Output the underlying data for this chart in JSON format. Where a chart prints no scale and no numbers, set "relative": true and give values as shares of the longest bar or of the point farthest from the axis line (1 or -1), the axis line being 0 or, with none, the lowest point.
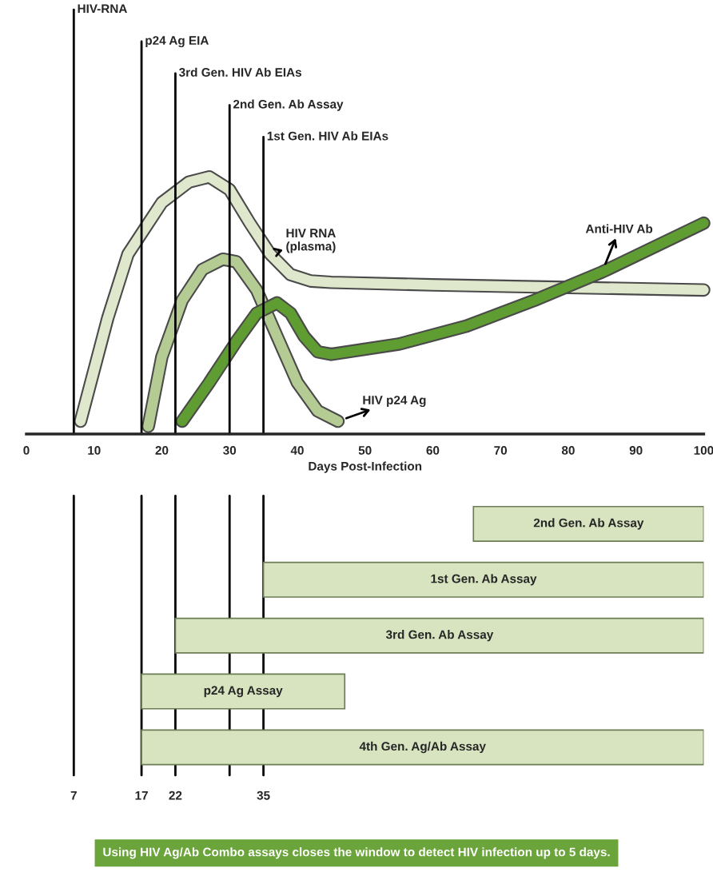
{
  "chart_data": [
    {
      "type": "line",
      "relative": true,
      "xlabel": "Days Post-Infection",
      "xlim": [
        0,
        100
      ],
      "xticks": [
        0,
        10,
        20,
        30,
        40,
        50,
        60,
        70,
        80,
        90,
        100
      ],
      "series": [
        {
          "name": "HIV RNA\n(plasma)",
          "color": "#dfe8cc",
          "x": [
            8,
            12,
            15,
            20,
            24,
            27,
            30,
            33,
            36,
            39,
            42,
            45,
            60,
            80,
            100
          ],
          "values": [
            0.05,
            0.45,
            0.7,
            0.9,
            0.98,
            1.0,
            0.95,
            0.82,
            0.7,
            0.62,
            0.595,
            0.59,
            0.58,
            0.57,
            0.56
          ]
        },
        {
          "name": "HIV p24 Ag",
          "color": "#b5cb94",
          "x": [
            18,
            20,
            23,
            26,
            29,
            31,
            34,
            37,
            40,
            43,
            46
          ],
          "values": [
            0.03,
            0.3,
            0.52,
            0.64,
            0.68,
            0.67,
            0.56,
            0.38,
            0.2,
            0.09,
            0.05
          ]
        },
        {
          "name": "Anti-HIV Ab",
          "color": "#5f9c31",
          "x": [
            23,
            27,
            31,
            34,
            37,
            39,
            41,
            43,
            45,
            55,
            65,
            75,
            85,
            100
          ],
          "values": [
            0.05,
            0.2,
            0.36,
            0.47,
            0.51,
            0.47,
            0.38,
            0.32,
            0.31,
            0.35,
            0.42,
            0.52,
            0.63,
            0.82
          ]
        }
      ],
      "ref_lines": [
        {
          "axis": "x",
          "value": 7,
          "label": "HIV-RNA"
        },
        {
          "axis": "x",
          "value": 17,
          "label": "p24 Ag EIA"
        },
        {
          "axis": "x",
          "value": 22,
          "label": "3rd Gen. HIV Ab EIAs"
        },
        {
          "axis": "x",
          "value": 30,
          "label": "2nd Gen. Ab Assay"
        },
        {
          "axis": "x",
          "value": 35,
          "label": "1st Gen. HIV Ab EIAs"
        }
      ]
    },
    {
      "type": "bar",
      "orientation": "horizontal",
      "categories": [
        "2nd Gen. Ab Assay",
        "1st Gen. Ab Assay",
        "3rd Gen. Ab Assay",
        "p24 Ag Assay",
        "4th Gen. Ag/Ab Assay"
      ],
      "base": [
        66,
        35,
        22,
        17,
        17
      ],
      "values": [
        34,
        65,
        78,
        30,
        83
      ],
      "color": "#d7e4bf",
      "xlim": [
        0,
        100
      ],
      "xticks": [
        7,
        17,
        22,
        35
      ],
      "ref_lines": [
        {
          "axis": "x",
          "value": 7
        },
        {
          "axis": "x",
          "value": 17
        },
        {
          "axis": "x",
          "value": 22
        },
        {
          "axis": "x",
          "value": 30
        },
        {
          "axis": "x",
          "value": 35
        }
      ],
      "annotations": [
        "Using HIV Ag/Ab Combo assays closes the window to detect HIV infection up to 5 days."
      ]
    }
  ]
}
